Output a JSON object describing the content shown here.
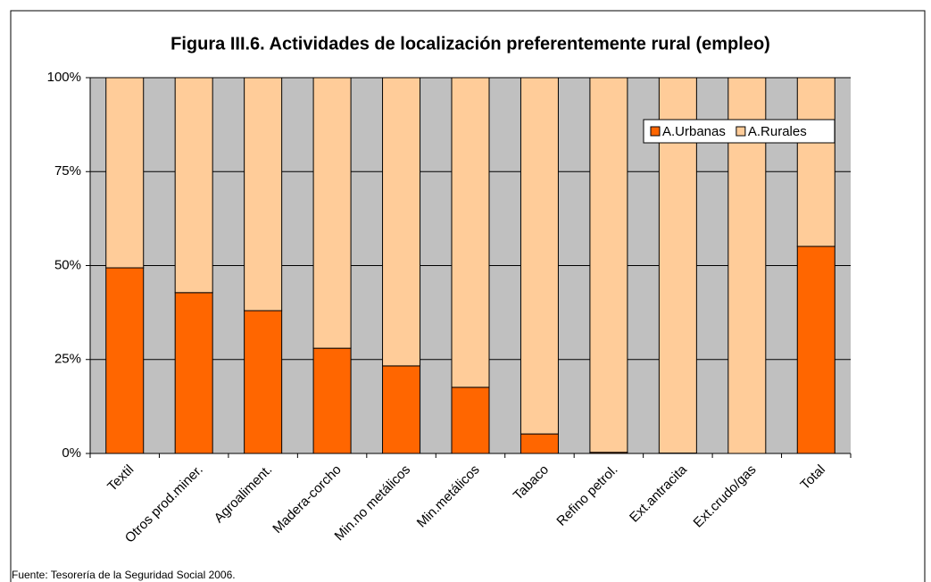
{
  "chart_data": {
    "type": "stacked_bar",
    "title": "Figura III.6. Actividades de localización preferentemente rural (empleo)",
    "categories": [
      "Textil",
      "Otros prod.miner.",
      "Agroaliment.",
      "Madera-corcho",
      "Min.no metálicos",
      "Min.metálicos",
      "Tabaco",
      "Refino petrol.",
      "Ext.antracita",
      "Ext.crudo/gas",
      "Total"
    ],
    "series": [
      {
        "name": "A.Urbanas",
        "color": "#ff6600",
        "values": [
          49.4,
          42.8,
          38,
          28,
          23.3,
          17.6,
          5.2,
          0.3,
          0.1,
          0,
          55.1
        ]
      },
      {
        "name": "A.Rurales",
        "color": "#ffcc99",
        "values": [
          50.6,
          57.2,
          62,
          72,
          76.7,
          82.4,
          94.8,
          99.7,
          99.9,
          100,
          44.9
        ]
      }
    ],
    "ylim": [
      0,
      100
    ],
    "yticks": [
      {
        "value": 0,
        "label": "0%"
      },
      {
        "value": 25,
        "label": "25%"
      },
      {
        "value": 50,
        "label": "50%"
      },
      {
        "value": 75,
        "label": "75%"
      },
      {
        "value": 100,
        "label": "100%"
      }
    ],
    "grid": true,
    "legend": "top-right",
    "source": "Fuente: Tesorería de la Seguridad Social 2006."
  }
}
